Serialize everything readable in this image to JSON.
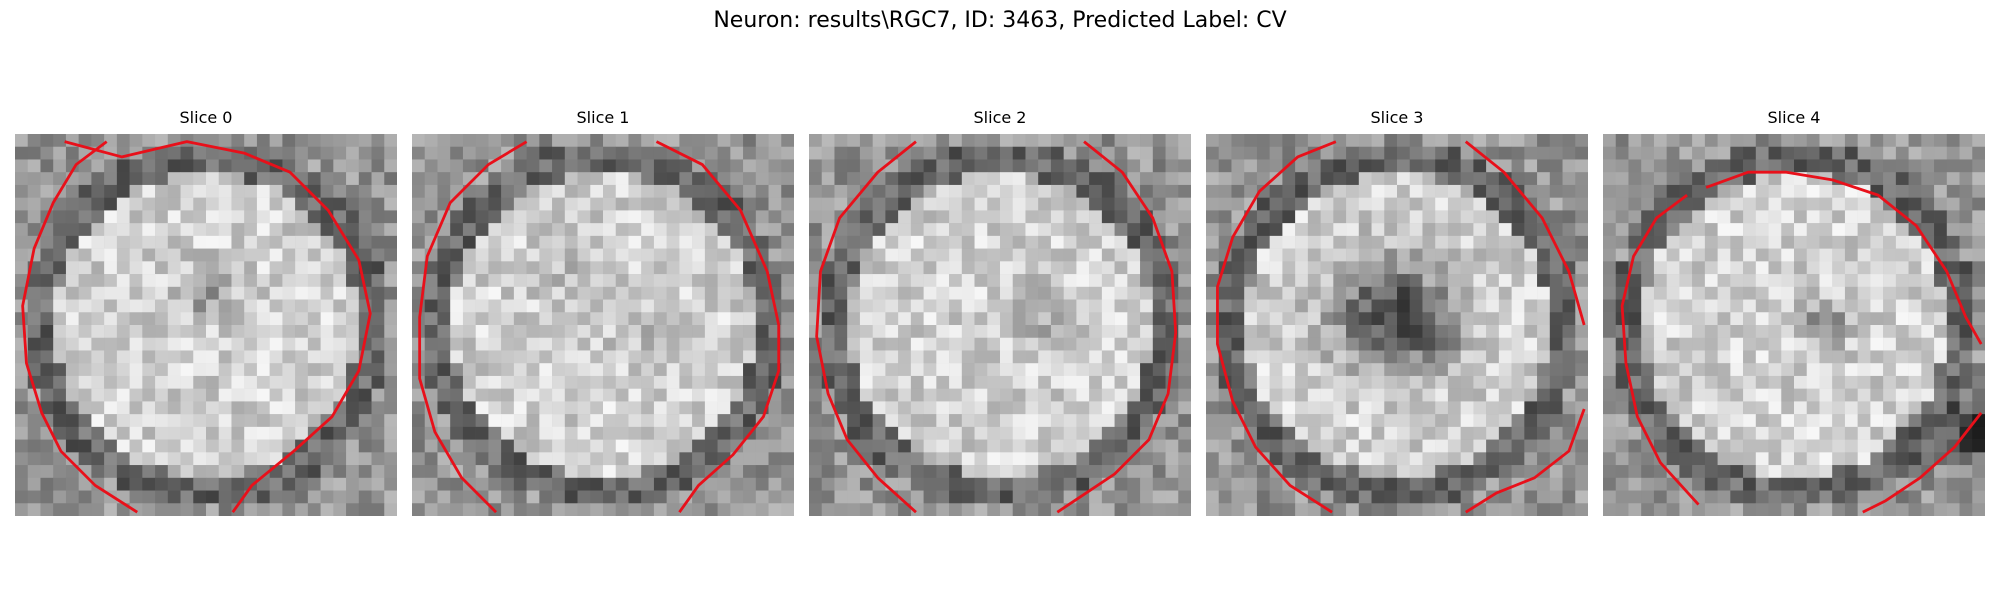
{
  "suptitle": "Neuron: results\\RGC7, ID: 3463, Predicted Label: CV",
  "colors": {
    "contour": "#e8101a"
  },
  "panels": [
    {
      "title": "Slice 0",
      "seed": 11,
      "blobs": [
        [
          0.5,
          0.42,
          0.05,
          -0.22
        ]
      ],
      "contour": [
        [
          0.13,
          0.02
        ],
        [
          0.28,
          0.06
        ],
        [
          0.45,
          0.02
        ],
        [
          0.6,
          0.05
        ],
        [
          0.72,
          0.1
        ],
        [
          0.82,
          0.2
        ],
        [
          0.9,
          0.33
        ],
        [
          0.93,
          0.47
        ],
        [
          0.9,
          0.62
        ],
        [
          0.83,
          0.74
        ],
        [
          0.73,
          0.83
        ],
        [
          0.62,
          0.92
        ],
        [
          0.57,
          0.99
        ]
      ],
      "contour2": [
        [
          0.32,
          0.99
        ],
        [
          0.21,
          0.92
        ],
        [
          0.12,
          0.83
        ],
        [
          0.07,
          0.73
        ],
        [
          0.03,
          0.6
        ],
        [
          0.02,
          0.45
        ],
        [
          0.05,
          0.3
        ],
        [
          0.1,
          0.18
        ],
        [
          0.16,
          0.08
        ],
        [
          0.24,
          0.02
        ]
      ]
    },
    {
      "title": "Slice 1",
      "seed": 23,
      "blobs": [
        [
          0.45,
          0.4,
          0.06,
          -0.1
        ],
        [
          0.6,
          0.55,
          0.05,
          -0.08
        ]
      ],
      "contour": [
        [
          0.64,
          0.02
        ],
        [
          0.76,
          0.08
        ],
        [
          0.86,
          0.2
        ],
        [
          0.93,
          0.36
        ],
        [
          0.96,
          0.5
        ],
        [
          0.96,
          0.62
        ],
        [
          0.92,
          0.74
        ],
        [
          0.84,
          0.84
        ],
        [
          0.75,
          0.92
        ],
        [
          0.7,
          0.99
        ]
      ],
      "contour2": [
        [
          0.22,
          0.99
        ],
        [
          0.13,
          0.9
        ],
        [
          0.06,
          0.78
        ],
        [
          0.02,
          0.64
        ],
        [
          0.02,
          0.48
        ],
        [
          0.04,
          0.32
        ],
        [
          0.1,
          0.18
        ],
        [
          0.2,
          0.08
        ],
        [
          0.3,
          0.02
        ]
      ]
    },
    {
      "title": "Slice 2",
      "seed": 37,
      "blobs": [
        [
          0.6,
          0.47,
          0.05,
          -0.18
        ]
      ],
      "contour": [
        [
          0.72,
          0.02
        ],
        [
          0.82,
          0.1
        ],
        [
          0.9,
          0.22
        ],
        [
          0.95,
          0.36
        ],
        [
          0.96,
          0.52
        ],
        [
          0.94,
          0.68
        ],
        [
          0.89,
          0.8
        ],
        [
          0.8,
          0.89
        ],
        [
          0.71,
          0.95
        ],
        [
          0.65,
          0.99
        ]
      ],
      "contour2": [
        [
          0.28,
          0.99
        ],
        [
          0.18,
          0.9
        ],
        [
          0.1,
          0.8
        ],
        [
          0.05,
          0.68
        ],
        [
          0.02,
          0.53
        ],
        [
          0.03,
          0.36
        ],
        [
          0.08,
          0.22
        ],
        [
          0.18,
          0.1
        ],
        [
          0.28,
          0.02
        ]
      ]
    },
    {
      "title": "Slice 3",
      "seed": 49,
      "blobs": [
        [
          0.48,
          0.47,
          0.1,
          -0.55
        ],
        [
          0.6,
          0.52,
          0.06,
          -0.2
        ]
      ],
      "contour": [
        [
          0.68,
          0.02
        ],
        [
          0.78,
          0.1
        ],
        [
          0.88,
          0.22
        ],
        [
          0.95,
          0.36
        ],
        [
          0.99,
          0.5
        ]
      ],
      "contour2": [
        [
          0.33,
          0.99
        ],
        [
          0.22,
          0.92
        ],
        [
          0.13,
          0.82
        ],
        [
          0.07,
          0.7
        ],
        [
          0.03,
          0.55
        ],
        [
          0.03,
          0.4
        ],
        [
          0.07,
          0.27
        ],
        [
          0.14,
          0.15
        ],
        [
          0.24,
          0.06
        ],
        [
          0.34,
          0.02
        ]
      ],
      "contour3": [
        [
          0.99,
          0.72
        ],
        [
          0.95,
          0.83
        ],
        [
          0.86,
          0.9
        ],
        [
          0.76,
          0.94
        ],
        [
          0.68,
          0.99
        ]
      ]
    },
    {
      "title": "Slice 4",
      "seed": 61,
      "blobs": [
        [
          0.58,
          0.5,
          0.04,
          -0.3
        ],
        [
          0.98,
          0.78,
          0.05,
          -0.45
        ]
      ],
      "contour": [
        [
          0.27,
          0.14
        ],
        [
          0.38,
          0.1
        ],
        [
          0.48,
          0.1
        ],
        [
          0.6,
          0.12
        ],
        [
          0.72,
          0.16
        ],
        [
          0.82,
          0.24
        ],
        [
          0.9,
          0.36
        ],
        [
          0.95,
          0.48
        ],
        [
          0.99,
          0.55
        ]
      ],
      "contour2": [
        [
          0.99,
          0.73
        ],
        [
          0.92,
          0.82
        ],
        [
          0.83,
          0.9
        ],
        [
          0.74,
          0.96
        ],
        [
          0.68,
          0.99
        ]
      ],
      "contour3": [
        [
          0.25,
          0.97
        ],
        [
          0.15,
          0.86
        ],
        [
          0.09,
          0.74
        ],
        [
          0.06,
          0.6
        ],
        [
          0.05,
          0.45
        ],
        [
          0.08,
          0.32
        ],
        [
          0.14,
          0.22
        ],
        [
          0.22,
          0.16
        ]
      ]
    }
  ]
}
